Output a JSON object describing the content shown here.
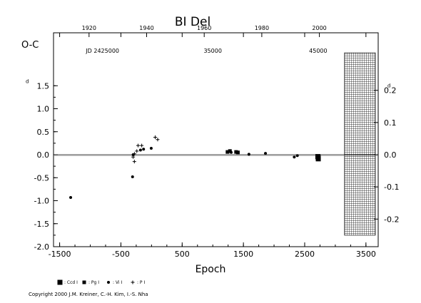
{
  "chart_data": {
    "type": "scatter",
    "title": "BI Del",
    "ylabel": "O-C",
    "ylabel_right_unit": "d",
    "xlabel": "Epoch",
    "xlim": [
      -1600,
      3700
    ],
    "ylim": [
      -2.0,
      2.0
    ],
    "x_ticks": [
      "-1500",
      "-500",
      "500",
      "1500",
      "2500",
      "3500"
    ],
    "x_tick_values": [
      -1500,
      -500,
      500,
      1500,
      2500,
      3500
    ],
    "y_ticks": [
      "1.5",
      "1.0",
      "0.5",
      "0.0",
      "-0.5",
      "-1.0",
      "-1.5",
      "-2.0"
    ],
    "y_tick_values": [
      1.5,
      1.0,
      0.5,
      0.0,
      -0.5,
      -1.0,
      -1.5,
      -2.0
    ],
    "y_right_ticks": [
      "0.2",
      "0.1",
      "0.0",
      "-0.1",
      "-0.2"
    ],
    "y_right_tick_values": [
      0.2,
      0.1,
      0.0,
      -0.1,
      -0.2
    ],
    "y_right_to_left_scale": 7.0,
    "top_year_ticks": [
      "1920",
      "1940",
      "1960",
      "1980",
      "2000"
    ],
    "top_year_epochs": [
      -1020,
      -80,
      860,
      1800,
      2740
    ],
    "jd_labels": [
      "JD 2425000",
      "35000",
      "45000"
    ],
    "jd_label_epochs": [
      -800,
      1000,
      2720
    ],
    "future_hatched_from_epoch": 3150,
    "zero_line": true,
    "series": [
      {
        "name": "Ccd",
        "marker": "square",
        "points": [
          [
            2720,
            -0.06
          ],
          [
            2722,
            -0.09
          ],
          [
            2715,
            -0.04
          ]
        ]
      },
      {
        "name": "Pg",
        "marker": "square-small",
        "points": [
          [
            1280,
            0.08
          ],
          [
            1380,
            0.06
          ],
          [
            1410,
            0.05
          ],
          [
            1240,
            0.06
          ]
        ]
      },
      {
        "name": "Vi",
        "marker": "dot",
        "points": [
          [
            -1320,
            -0.93
          ],
          [
            -300,
            0.0
          ],
          [
            -310,
            -0.48
          ],
          [
            -180,
            0.1
          ],
          [
            -130,
            0.12
          ],
          [
            -5,
            0.14
          ],
          [
            1590,
            0.01
          ],
          [
            1860,
            0.03
          ],
          [
            2330,
            -0.05
          ],
          [
            2380,
            -0.02
          ],
          [
            1300,
            0.05
          ]
        ]
      },
      {
        "name": "P",
        "marker": "plus",
        "points": [
          [
            -280,
            -0.15
          ],
          [
            -220,
            0.2
          ],
          [
            -160,
            0.2
          ],
          [
            -240,
            0.08
          ],
          [
            -300,
            -0.05
          ],
          [
            60,
            0.38
          ],
          [
            100,
            0.33
          ],
          [
            -280,
            0.02
          ]
        ]
      }
    ]
  },
  "legend": {
    "items": [
      {
        "marker": "square",
        "label": ": Ccd I"
      },
      {
        "marker": "square-small",
        "label": ": Pg I"
      },
      {
        "marker": "dot",
        "label": ": Vi I"
      },
      {
        "marker": "plus",
        "label": ": P I"
      }
    ]
  },
  "copyright": "Copyright 2000 J.M. Kreiner, C.-H. Kim, I.-S. Nha"
}
